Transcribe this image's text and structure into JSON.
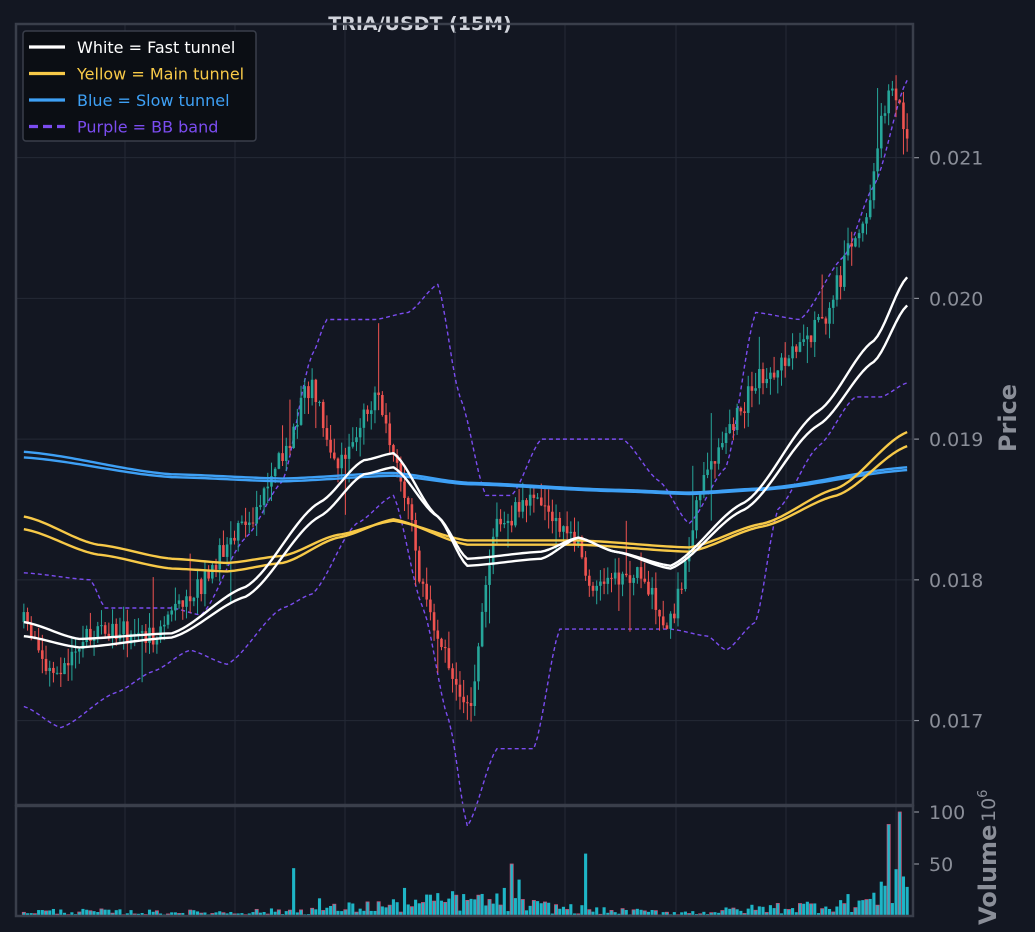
{
  "chart_data": {
    "type": "candlestick",
    "title": "TRIA/USDT (15M)",
    "ylabel": "Price",
    "volume_label": "Volume",
    "volume_exponent": "10",
    "volume_exponent_power": "6",
    "ylim": [
      0.0164,
      0.02195
    ],
    "yticks": [
      0.017,
      0.018,
      0.019,
      0.02,
      0.021
    ],
    "ytick_labels": [
      "0.017",
      "0.018",
      "0.019",
      "0.020",
      "0.021"
    ],
    "volume_ylim": [
      0,
      100
    ],
    "volume_ticks": [
      50,
      100
    ],
    "volume_tick_labels": [
      "50",
      "100"
    ],
    "grid": true,
    "legend_position": "top-left",
    "legend": [
      {
        "label": "White = Fast tunnel",
        "color": "#ffffff",
        "style": "solid"
      },
      {
        "label": "Yellow = Main tunnel",
        "color": "#f7c948",
        "style": "solid"
      },
      {
        "label": "Blue = Slow tunnel",
        "color": "#3ea0f5",
        "style": "solid"
      },
      {
        "label": "Purple = BB band",
        "color": "#7b4cf0",
        "style": "dashed"
      }
    ],
    "colors": {
      "up": "#26a69a",
      "down": "#ef5350",
      "volume": "#1eb5c6",
      "background": "#131722",
      "grid": "#242a36",
      "spine": "#3a3f4b"
    },
    "candle_count": 240,
    "price_path": [
      {
        "i": 0,
        "p": 0.0177
      },
      {
        "i": 8,
        "p": 0.0173
      },
      {
        "i": 20,
        "p": 0.01765
      },
      {
        "i": 35,
        "p": 0.0176
      },
      {
        "i": 45,
        "p": 0.0179
      },
      {
        "i": 60,
        "p": 0.0184
      },
      {
        "i": 70,
        "p": 0.0189
      },
      {
        "i": 78,
        "p": 0.0194
      },
      {
        "i": 85,
        "p": 0.0188
      },
      {
        "i": 95,
        "p": 0.0193
      },
      {
        "i": 102,
        "p": 0.0187
      },
      {
        "i": 110,
        "p": 0.0177
      },
      {
        "i": 120,
        "p": 0.01705
      },
      {
        "i": 128,
        "p": 0.0184
      },
      {
        "i": 138,
        "p": 0.01855
      },
      {
        "i": 148,
        "p": 0.01835
      },
      {
        "i": 155,
        "p": 0.0179
      },
      {
        "i": 165,
        "p": 0.01805
      },
      {
        "i": 175,
        "p": 0.0177
      },
      {
        "i": 185,
        "p": 0.0188
      },
      {
        "i": 200,
        "p": 0.01945
      },
      {
        "i": 215,
        "p": 0.0198
      },
      {
        "i": 228,
        "p": 0.0206
      },
      {
        "i": 234,
        "p": 0.0215
      },
      {
        "i": 239,
        "p": 0.0212
      }
    ],
    "fast_tunnel_a": [
      {
        "i": 0,
        "p": 0.0177
      },
      {
        "i": 15,
        "p": 0.01758
      },
      {
        "i": 40,
        "p": 0.01762
      },
      {
        "i": 60,
        "p": 0.01795
      },
      {
        "i": 80,
        "p": 0.01855
      },
      {
        "i": 92,
        "p": 0.01885
      },
      {
        "i": 100,
        "p": 0.0189
      },
      {
        "i": 112,
        "p": 0.01845
      },
      {
        "i": 120,
        "p": 0.01815
      },
      {
        "i": 140,
        "p": 0.0182
      },
      {
        "i": 150,
        "p": 0.0183
      },
      {
        "i": 160,
        "p": 0.0182
      },
      {
        "i": 175,
        "p": 0.0181
      },
      {
        "i": 195,
        "p": 0.01855
      },
      {
        "i": 215,
        "p": 0.0192
      },
      {
        "i": 230,
        "p": 0.0197
      },
      {
        "i": 239,
        "p": 0.02015
      }
    ],
    "fast_tunnel_b": [
      {
        "i": 0,
        "p": 0.0176
      },
      {
        "i": 15,
        "p": 0.01752
      },
      {
        "i": 40,
        "p": 0.01759
      },
      {
        "i": 60,
        "p": 0.01788
      },
      {
        "i": 80,
        "p": 0.01845
      },
      {
        "i": 92,
        "p": 0.01875
      },
      {
        "i": 100,
        "p": 0.0188
      },
      {
        "i": 112,
        "p": 0.01845
      },
      {
        "i": 120,
        "p": 0.0181
      },
      {
        "i": 140,
        "p": 0.01815
      },
      {
        "i": 150,
        "p": 0.0183
      },
      {
        "i": 160,
        "p": 0.0182
      },
      {
        "i": 175,
        "p": 0.01808
      },
      {
        "i": 195,
        "p": 0.0185
      },
      {
        "i": 215,
        "p": 0.0191
      },
      {
        "i": 230,
        "p": 0.01955
      },
      {
        "i": 239,
        "p": 0.01995
      }
    ],
    "main_tunnel_a": [
      {
        "i": 0,
        "p": 0.01845
      },
      {
        "i": 20,
        "p": 0.01825
      },
      {
        "i": 40,
        "p": 0.01815
      },
      {
        "i": 55,
        "p": 0.01812
      },
      {
        "i": 70,
        "p": 0.01817
      },
      {
        "i": 85,
        "p": 0.01832
      },
      {
        "i": 100,
        "p": 0.01842
      },
      {
        "i": 120,
        "p": 0.01828
      },
      {
        "i": 150,
        "p": 0.01828
      },
      {
        "i": 180,
        "p": 0.01823
      },
      {
        "i": 200,
        "p": 0.0184
      },
      {
        "i": 220,
        "p": 0.01865
      },
      {
        "i": 239,
        "p": 0.01905
      }
    ],
    "main_tunnel_b": [
      {
        "i": 0,
        "p": 0.01836
      },
      {
        "i": 20,
        "p": 0.01818
      },
      {
        "i": 40,
        "p": 0.01808
      },
      {
        "i": 55,
        "p": 0.01806
      },
      {
        "i": 70,
        "p": 0.01812
      },
      {
        "i": 85,
        "p": 0.0183
      },
      {
        "i": 100,
        "p": 0.01843
      },
      {
        "i": 120,
        "p": 0.01825
      },
      {
        "i": 150,
        "p": 0.01825
      },
      {
        "i": 180,
        "p": 0.0182
      },
      {
        "i": 200,
        "p": 0.01838
      },
      {
        "i": 220,
        "p": 0.0186
      },
      {
        "i": 239,
        "p": 0.01895
      }
    ],
    "slow_tunnel_a": [
      {
        "i": 0,
        "p": 0.01891
      },
      {
        "i": 40,
        "p": 0.01875
      },
      {
        "i": 70,
        "p": 0.01872
      },
      {
        "i": 100,
        "p": 0.01876
      },
      {
        "i": 120,
        "p": 0.01869
      },
      {
        "i": 160,
        "p": 0.01864
      },
      {
        "i": 180,
        "p": 0.01862
      },
      {
        "i": 200,
        "p": 0.01865
      },
      {
        "i": 239,
        "p": 0.0188
      }
    ],
    "slow_tunnel_b": [
      {
        "i": 0,
        "p": 0.01887
      },
      {
        "i": 40,
        "p": 0.01873
      },
      {
        "i": 70,
        "p": 0.0187
      },
      {
        "i": 100,
        "p": 0.01874
      },
      {
        "i": 120,
        "p": 0.01868
      },
      {
        "i": 160,
        "p": 0.01863
      },
      {
        "i": 180,
        "p": 0.01861
      },
      {
        "i": 200,
        "p": 0.01864
      },
      {
        "i": 239,
        "p": 0.01878
      }
    ],
    "bb_upper": [
      {
        "i": 0,
        "p": 0.01805
      },
      {
        "i": 18,
        "p": 0.018
      },
      {
        "i": 22,
        "p": 0.0178
      },
      {
        "i": 40,
        "p": 0.0178
      },
      {
        "i": 48,
        "p": 0.01775
      },
      {
        "i": 60,
        "p": 0.0183
      },
      {
        "i": 70,
        "p": 0.0187
      },
      {
        "i": 78,
        "p": 0.0196
      },
      {
        "i": 82,
        "p": 0.01985
      },
      {
        "i": 95,
        "p": 0.01985
      },
      {
        "i": 104,
        "p": 0.0199
      },
      {
        "i": 112,
        "p": 0.0201
      },
      {
        "i": 118,
        "p": 0.0193
      },
      {
        "i": 125,
        "p": 0.0186
      },
      {
        "i": 132,
        "p": 0.0186
      },
      {
        "i": 140,
        "p": 0.019
      },
      {
        "i": 148,
        "p": 0.019
      },
      {
        "i": 162,
        "p": 0.019
      },
      {
        "i": 172,
        "p": 0.0187
      },
      {
        "i": 180,
        "p": 0.0184
      },
      {
        "i": 190,
        "p": 0.0188
      },
      {
        "i": 198,
        "p": 0.0199
      },
      {
        "i": 210,
        "p": 0.01985
      },
      {
        "i": 222,
        "p": 0.0203
      },
      {
        "i": 230,
        "p": 0.0208
      },
      {
        "i": 239,
        "p": 0.02155
      }
    ],
    "bb_lower": [
      {
        "i": 0,
        "p": 0.0171
      },
      {
        "i": 10,
        "p": 0.01695
      },
      {
        "i": 25,
        "p": 0.0172
      },
      {
        "i": 35,
        "p": 0.01735
      },
      {
        "i": 45,
        "p": 0.0175
      },
      {
        "i": 55,
        "p": 0.0174
      },
      {
        "i": 70,
        "p": 0.0178
      },
      {
        "i": 78,
        "p": 0.0179
      },
      {
        "i": 90,
        "p": 0.0184
      },
      {
        "i": 100,
        "p": 0.0186
      },
      {
        "i": 108,
        "p": 0.0178
      },
      {
        "i": 115,
        "p": 0.017
      },
      {
        "i": 120,
        "p": 0.01625
      },
      {
        "i": 128,
        "p": 0.0168
      },
      {
        "i": 138,
        "p": 0.0168
      },
      {
        "i": 145,
        "p": 0.01765
      },
      {
        "i": 160,
        "p": 0.01765
      },
      {
        "i": 175,
        "p": 0.01765
      },
      {
        "i": 185,
        "p": 0.0176
      },
      {
        "i": 190,
        "p": 0.0175
      },
      {
        "i": 198,
        "p": 0.0177
      },
      {
        "i": 204,
        "p": 0.0185
      },
      {
        "i": 215,
        "p": 0.01895
      },
      {
        "i": 225,
        "p": 0.0193
      },
      {
        "i": 232,
        "p": 0.0193
      },
      {
        "i": 239,
        "p": 0.0194
      }
    ],
    "volume_base": [
      {
        "i": 0,
        "v": 4
      },
      {
        "i": 50,
        "v": 3
      },
      {
        "i": 70,
        "v": 4
      },
      {
        "i": 100,
        "v": 9
      },
      {
        "i": 120,
        "v": 14
      },
      {
        "i": 140,
        "v": 8
      },
      {
        "i": 160,
        "v": 4
      },
      {
        "i": 180,
        "v": 3
      },
      {
        "i": 210,
        "v": 8
      },
      {
        "i": 225,
        "v": 12
      },
      {
        "i": 239,
        "v": 18
      }
    ],
    "volume_spikes": [
      {
        "i": 73,
        "v": 46
      },
      {
        "i": 80,
        "v": 17
      },
      {
        "i": 103,
        "v": 27
      },
      {
        "i": 112,
        "v": 22
      },
      {
        "i": 117,
        "v": 20
      },
      {
        "i": 120,
        "v": 15
      },
      {
        "i": 122,
        "v": 16
      },
      {
        "i": 130,
        "v": 27
      },
      {
        "i": 132,
        "v": 50
      },
      {
        "i": 134,
        "v": 35
      },
      {
        "i": 152,
        "v": 60
      },
      {
        "i": 232,
        "v": 33
      },
      {
        "i": 234,
        "v": 88
      },
      {
        "i": 236,
        "v": 45
      },
      {
        "i": 237,
        "v": 100
      },
      {
        "i": 238,
        "v": 38
      },
      {
        "i": 239,
        "v": 28
      }
    ]
  }
}
